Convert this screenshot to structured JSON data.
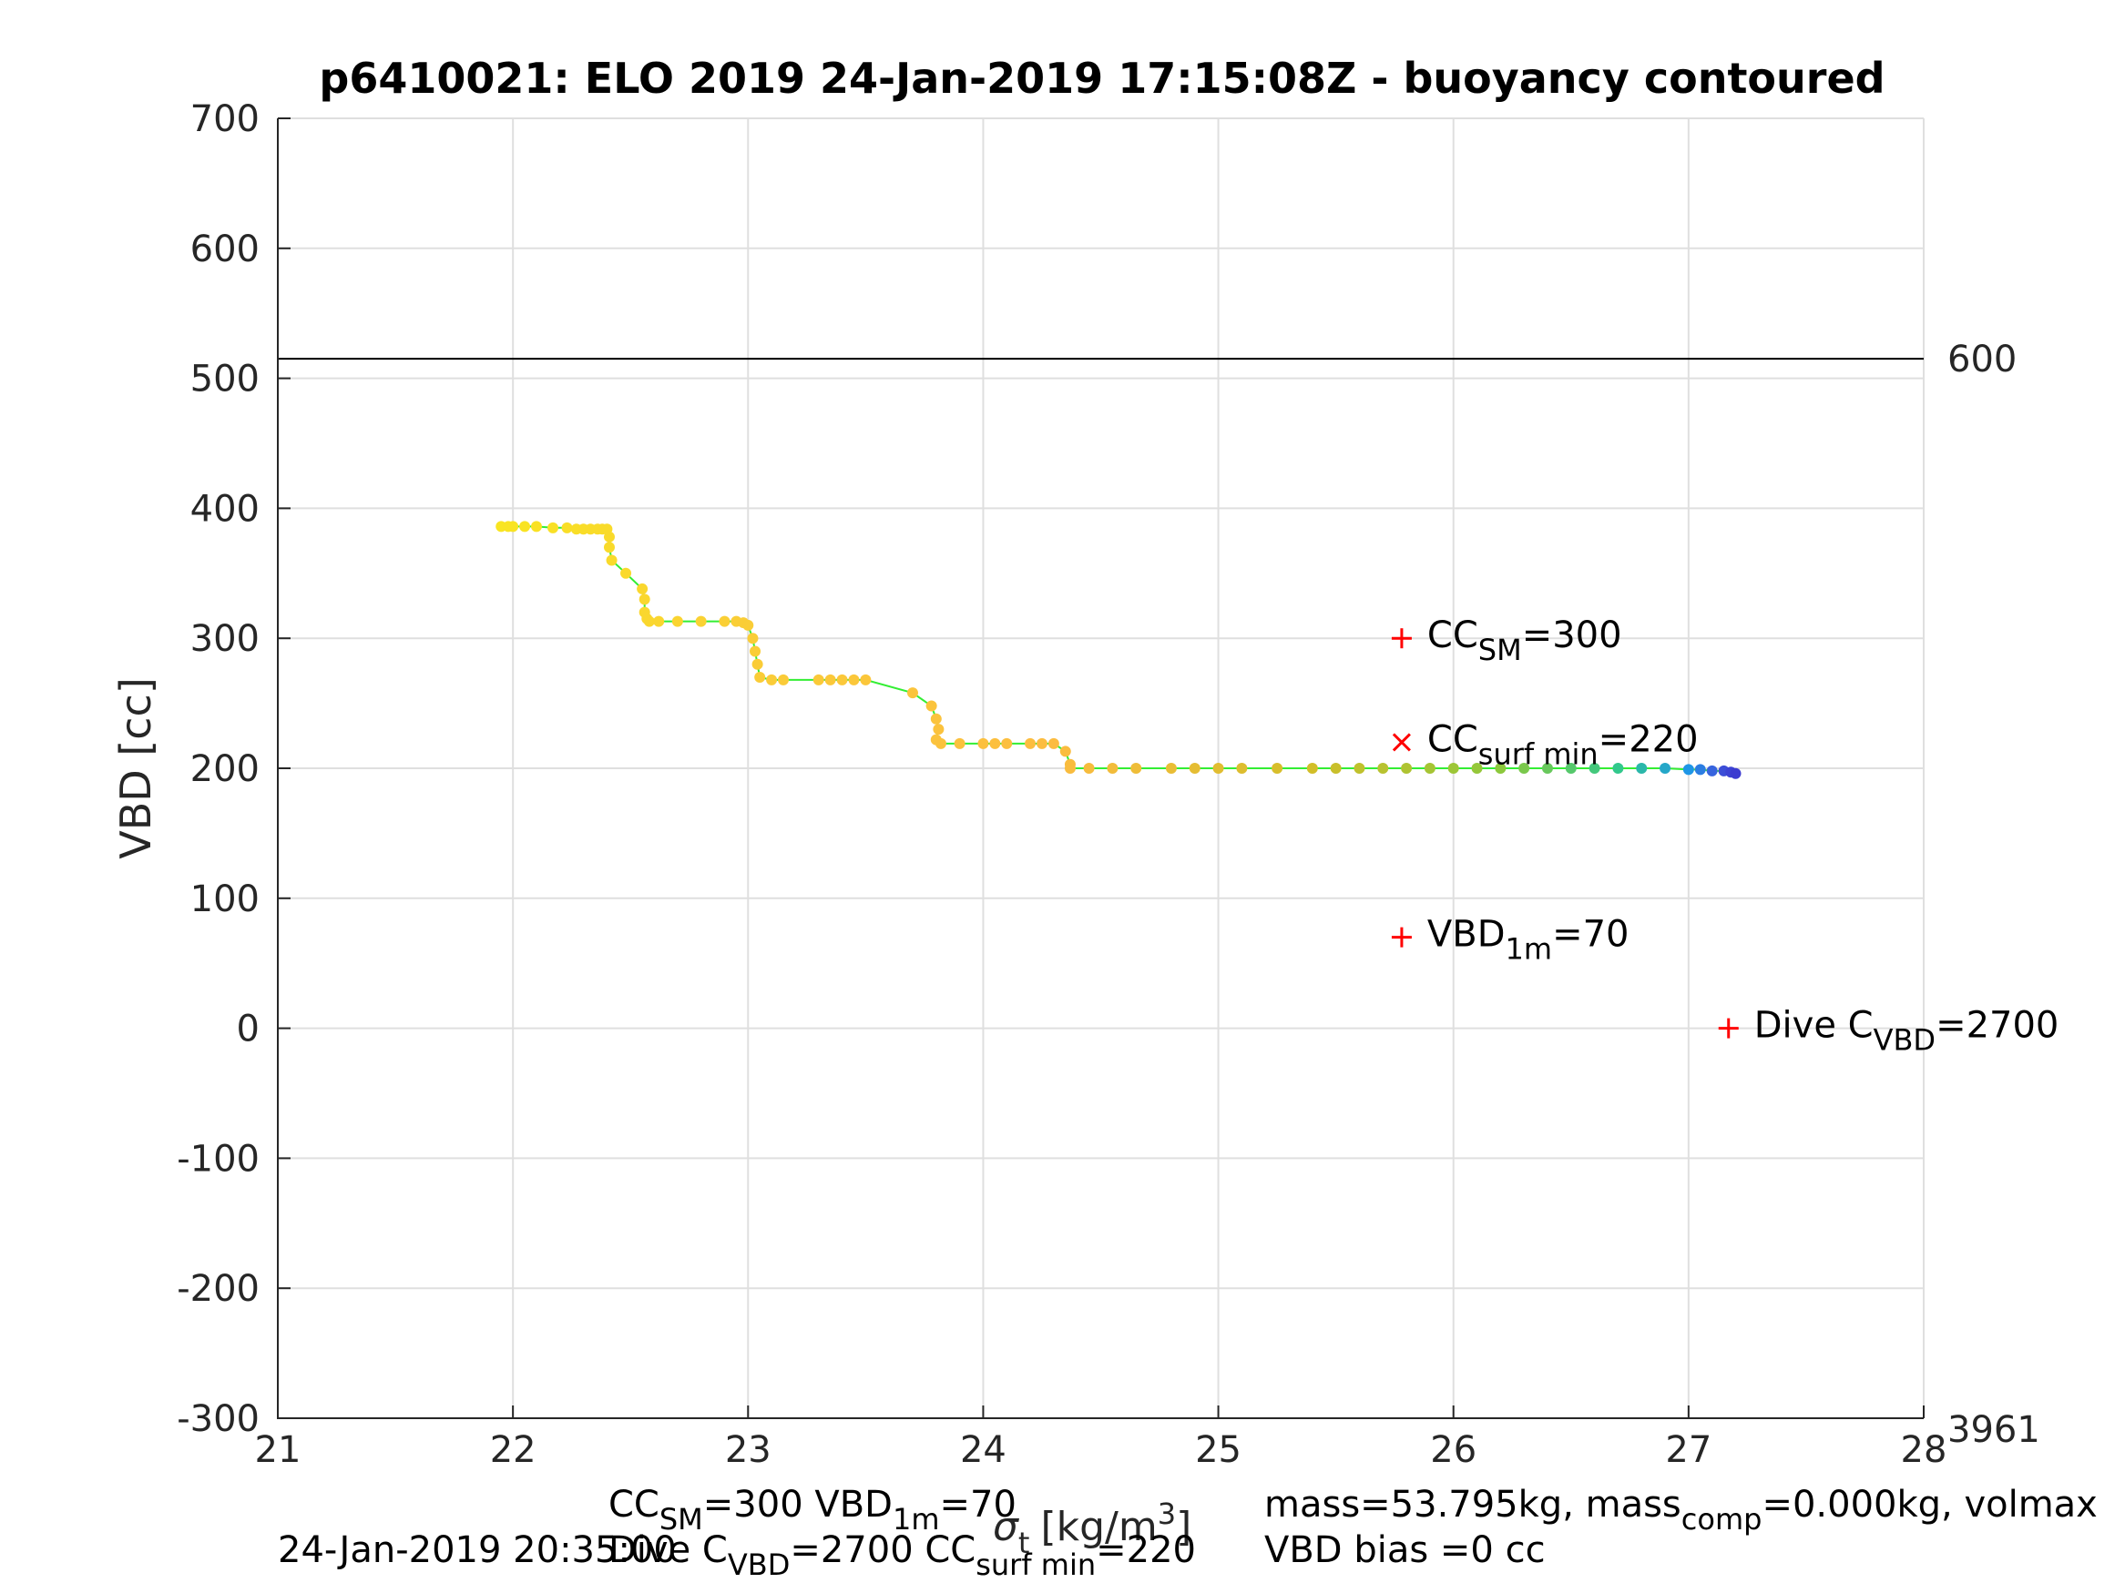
{
  "chart_data": {
    "type": "scatter",
    "title": "p6410021: ELO 2019 24-Jan-2019 17:15:08Z - buoyancy contoured",
    "xlabel": {
      "base": "",
      "sigma": "σ",
      "sub": "t",
      "unit": "[kg/m",
      "sup": "3",
      "close": "]"
    },
    "ylabel": "VBD [cc]",
    "xlim": [
      21,
      28
    ],
    "ylim": [
      -300,
      700
    ],
    "xticks": [
      "21",
      "22",
      "23",
      "24",
      "25",
      "26",
      "27",
      "28"
    ],
    "yticks": [
      "-300",
      "-200",
      "-100",
      "0",
      "100",
      "200",
      "300",
      "400",
      "500",
      "600",
      "700"
    ],
    "grid": true,
    "right_labels": {
      "top": "600",
      "bottom": "3961"
    },
    "hline_y": 515,
    "line_color": "#33ee33",
    "series": [
      {
        "points": [
          [
            21.95,
            386
          ],
          [
            21.98,
            386
          ],
          [
            22.0,
            386
          ],
          [
            22.05,
            386
          ],
          [
            22.1,
            386
          ],
          [
            22.17,
            385
          ],
          [
            22.23,
            385
          ],
          [
            22.27,
            384
          ],
          [
            22.3,
            384
          ],
          [
            22.33,
            384
          ],
          [
            22.36,
            384
          ],
          [
            22.38,
            384
          ],
          [
            22.4,
            384
          ],
          [
            22.41,
            378
          ],
          [
            22.41,
            370
          ],
          [
            22.42,
            360
          ],
          [
            22.48,
            350
          ],
          [
            22.55,
            338
          ],
          [
            22.56,
            330
          ],
          [
            22.56,
            320
          ],
          [
            22.57,
            315
          ],
          [
            22.58,
            313
          ],
          [
            22.62,
            313
          ],
          [
            22.7,
            313
          ],
          [
            22.8,
            313
          ],
          [
            22.9,
            313
          ],
          [
            22.95,
            313
          ],
          [
            22.98,
            312
          ],
          [
            23.0,
            310
          ],
          [
            23.02,
            300
          ],
          [
            23.03,
            290
          ],
          [
            23.04,
            280
          ],
          [
            23.05,
            270
          ],
          [
            23.1,
            268
          ],
          [
            23.15,
            268
          ],
          [
            23.3,
            268
          ],
          [
            23.35,
            268
          ],
          [
            23.4,
            268
          ],
          [
            23.45,
            268
          ],
          [
            23.5,
            268
          ],
          [
            23.7,
            258
          ],
          [
            23.78,
            248
          ],
          [
            23.8,
            238
          ],
          [
            23.81,
            230
          ],
          [
            23.8,
            222
          ],
          [
            23.82,
            219
          ],
          [
            23.9,
            219
          ],
          [
            24.0,
            219
          ],
          [
            24.05,
            219
          ],
          [
            24.1,
            219
          ],
          [
            24.2,
            219
          ],
          [
            24.25,
            219
          ],
          [
            24.3,
            219
          ],
          [
            24.35,
            213
          ],
          [
            24.37,
            203
          ],
          [
            24.37,
            200
          ],
          [
            24.45,
            200
          ],
          [
            24.55,
            200
          ],
          [
            24.65,
            200
          ],
          [
            24.8,
            200
          ],
          [
            24.9,
            200
          ],
          [
            25.0,
            200
          ],
          [
            25.1,
            200
          ],
          [
            25.25,
            200
          ],
          [
            25.4,
            200
          ],
          [
            25.5,
            200
          ],
          [
            25.6,
            200
          ],
          [
            25.7,
            200
          ],
          [
            25.8,
            200
          ],
          [
            25.9,
            200
          ],
          [
            26.0,
            200
          ],
          [
            26.1,
            200
          ],
          [
            26.2,
            200
          ],
          [
            26.3,
            200
          ],
          [
            26.4,
            200
          ],
          [
            26.5,
            200
          ],
          [
            26.6,
            200
          ],
          [
            26.7,
            200
          ],
          [
            26.8,
            200
          ],
          [
            26.9,
            200
          ],
          [
            27.0,
            199
          ],
          [
            27.05,
            199
          ],
          [
            27.1,
            198
          ],
          [
            27.15,
            198
          ],
          [
            27.18,
            197
          ],
          [
            27.2,
            196
          ]
        ]
      }
    ],
    "annotations": [
      {
        "marker": "+",
        "x": 25.78,
        "y": 300,
        "base": "CC",
        "sub": "SM",
        "rest": "=300"
      },
      {
        "marker": "x",
        "x": 25.78,
        "y": 220,
        "base": "CC",
        "sub": "surf min",
        "rest": "=220"
      },
      {
        "marker": "+",
        "x": 25.78,
        "y": 70,
        "base": "VBD",
        "sub": "1m",
        "rest": "=70"
      },
      {
        "marker": "+",
        "x": 27.17,
        "y": 0,
        "base": "Dive C",
        "sub": "VBD",
        "rest": "=2700"
      }
    ],
    "colors": {
      "marker_red": "#ff0000",
      "axis": "#262626",
      "grid": "#dfdfdf"
    }
  },
  "footer": {
    "line1_a": "CC",
    "line1_a_sub": "SM",
    "line1_b": "=300    VBD",
    "line1_b_sub": "1m",
    "line1_c": "=70",
    "line2_time": "24-Jan-2019 20:35:00",
    "line2_a": "Dive C",
    "line2_a_sub": "VBD",
    "line2_b": "=2700    CC",
    "line2_b_sub": "surf min",
    "line2_c": "=220",
    "mass_a": "mass=53.795kg, mass",
    "mass_sub": "comp",
    "mass_b": "=0.000kg, volmax",
    "bias": "VBD bias =0 cc"
  }
}
